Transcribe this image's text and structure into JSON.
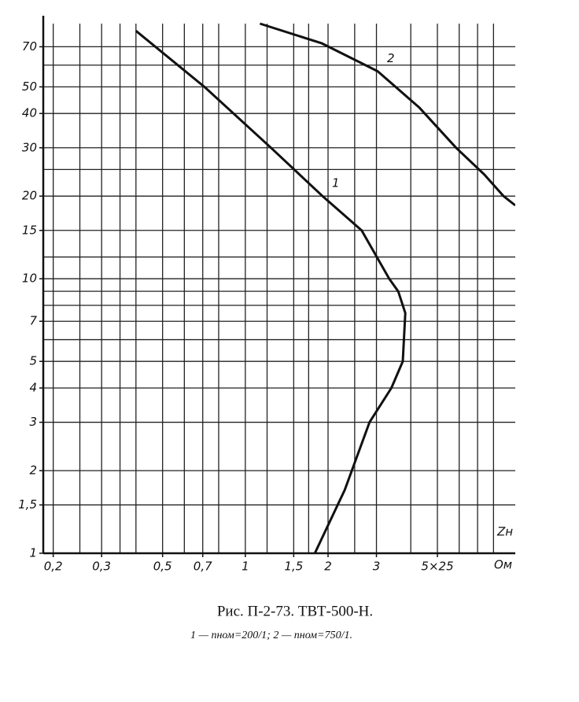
{
  "chart_data": {
    "type": "line",
    "caption": "Рис. П-2-73. ТВТ-500-Н.",
    "subcaption": "1 — nном=200/1;  2 — nном=750/1.",
    "x_label": "Zн",
    "x_unit": "Ом",
    "xscale": "log",
    "yscale": "log",
    "xlim": [
      0.184,
      9.6
    ],
    "ylim": [
      1,
      85
    ],
    "xticks": [
      {
        "value": 0.2,
        "label": "0,2"
      },
      {
        "value": 0.3,
        "label": "0,3"
      },
      {
        "value": 0.5,
        "label": "0,5"
      },
      {
        "value": 0.7,
        "label": "0,7"
      },
      1,
      {
        "value": 1.5,
        "label": "1,5"
      },
      2,
      3,
      {
        "value": 5,
        "label": "5×25"
      }
    ],
    "yticks": [
      1,
      {
        "value": 1.5,
        "label": "1,5"
      },
      2,
      3,
      4,
      5,
      7,
      10,
      15,
      20,
      30,
      40,
      50,
      70
    ],
    "xgrid": [
      0.2,
      0.25,
      0.3,
      0.35,
      0.4,
      0.5,
      0.6,
      0.7,
      0.8,
      1,
      1.2,
      1.5,
      1.7,
      2,
      2.5,
      3,
      4,
      5,
      6,
      7,
      8
    ],
    "ygrid": [
      1.5,
      2,
      3,
      4,
      5,
      6,
      7,
      8,
      9,
      10,
      12,
      15,
      20,
      25,
      30,
      40,
      50,
      60,
      70
    ],
    "color": "#111",
    "series": [
      {
        "name": "1",
        "x": [
          1.79,
          2.3,
          2.83,
          3.4,
          3.74,
          3.82,
          3.6,
          3.34,
          2.65,
          1.91,
          1.24,
          0.71,
          0.4
        ],
        "values": [
          1,
          1.7,
          3,
          4,
          5,
          7.5,
          9,
          10,
          15,
          20,
          30,
          50,
          80
        ]
      },
      {
        "name": "2",
        "x": [
          1.13,
          1.9,
          3.03,
          4.3,
          5.85,
          7.4,
          8.7,
          9.6
        ],
        "values": [
          85,
          72,
          57,
          42,
          30,
          24,
          20,
          18.5
        ]
      }
    ]
  }
}
